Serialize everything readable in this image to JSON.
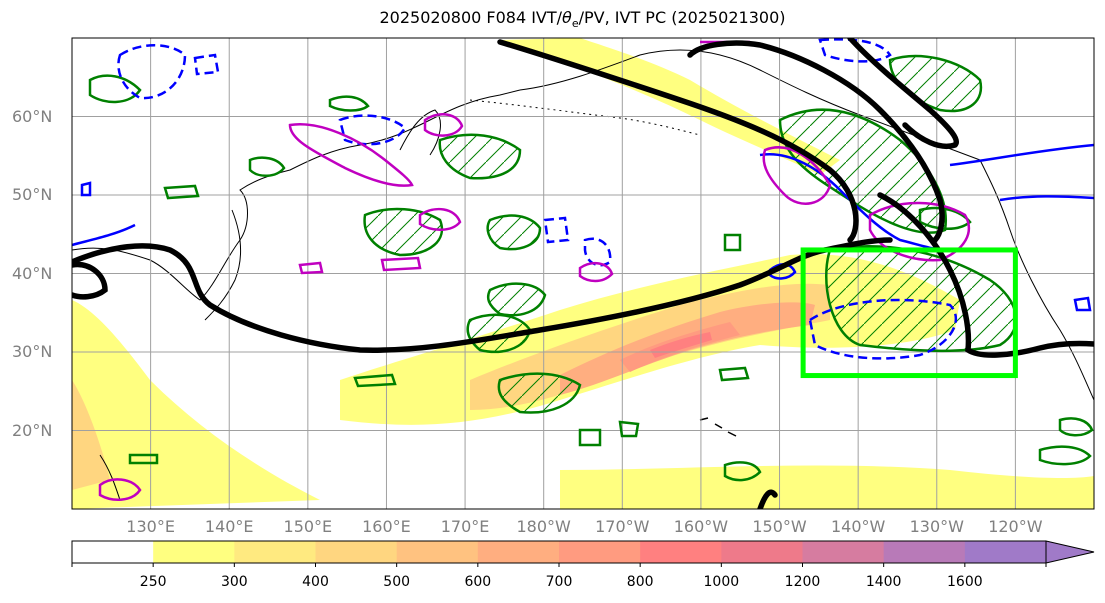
{
  "title": "2025020800 F084 IVT/θe/PV, IVT PC (2025021300)",
  "title_parts": {
    "pre": "2025020800 F084 IVT/",
    "theta": "θ",
    "sub": "e",
    "post": "/PV, IVT PC (2025021300)"
  },
  "map": {
    "lon_range": [
      120,
      250
    ],
    "lat_range": [
      10,
      70
    ],
    "lat_ticks": [
      {
        "lat": 60,
        "label": "60°N"
      },
      {
        "lat": 50,
        "label": "50°N"
      },
      {
        "lat": 40,
        "label": "40°N"
      },
      {
        "lat": 30,
        "label": "30°N"
      },
      {
        "lat": 20,
        "label": "20°N"
      }
    ],
    "lon_ticks": [
      {
        "lon": 130,
        "label": "130°E"
      },
      {
        "lon": 140,
        "label": "140°E"
      },
      {
        "lon": 150,
        "label": "150°E"
      },
      {
        "lon": 160,
        "label": "160°E"
      },
      {
        "lon": 170,
        "label": "170°E"
      },
      {
        "lon": 180,
        "label": "180°W"
      },
      {
        "lon": 190,
        "label": "170°W"
      },
      {
        "lon": 200,
        "label": "160°W"
      },
      {
        "lon": 210,
        "label": "150°W"
      },
      {
        "lon": 220,
        "label": "140°W"
      },
      {
        "lon": 230,
        "label": "130°W"
      },
      {
        "lon": 240,
        "label": "120°W"
      }
    ],
    "highlight_box": {
      "lon": [
        213,
        240
      ],
      "lat": [
        27,
        43
      ],
      "color": "#00ff00"
    }
  },
  "colorbar": {
    "levels": [
      250,
      300,
      400,
      500,
      600,
      700,
      800,
      1000,
      1200,
      1400,
      1600
    ],
    "colors": [
      "#ffffff",
      "#ffff80",
      "#ffea80",
      "#ffd680",
      "#ffc280",
      "#ffae80",
      "#ff9b80",
      "#ff8080",
      "#ee7a8a",
      "#d67ca0",
      "#b87ab8",
      "#a07ac8"
    ]
  },
  "colors": {
    "ivt_pc_positive": "#008000",
    "ivt_pc_negative": "#0000ff",
    "pv": "#c000c0",
    "jet": "#000000",
    "grid": "#a0a0a0"
  }
}
